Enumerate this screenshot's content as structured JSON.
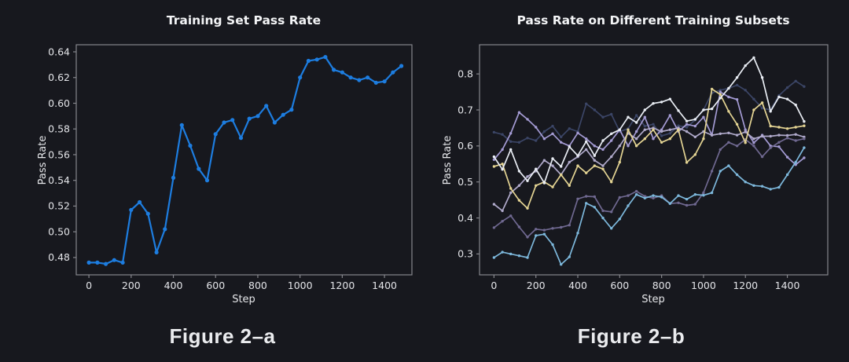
{
  "page": {
    "background": "#17181e",
    "spine_color": "#85868c",
    "text_color": "#e3e4e8"
  },
  "figures": [
    {
      "title": "Training Set Pass Rate",
      "xlabel": "Step",
      "ylabel": "Pass Rate",
      "caption": "Figure 2–a"
    },
    {
      "title": "Pass Rate on Different Training Subsets",
      "xlabel": "Step",
      "ylabel": "Pass Rate",
      "caption": "Figure 2–b"
    }
  ],
  "chart_data": [
    {
      "type": "line",
      "title": "Training Set Pass Rate",
      "xlabel": "Step",
      "ylabel": "Pass Rate",
      "grid": false,
      "legend": null,
      "x": [
        0,
        40,
        80,
        120,
        160,
        200,
        240,
        280,
        320,
        360,
        400,
        440,
        480,
        520,
        560,
        600,
        640,
        680,
        720,
        760,
        800,
        840,
        880,
        920,
        960,
        1000,
        1040,
        1080,
        1120,
        1160,
        1200,
        1240,
        1280,
        1320,
        1360,
        1400,
        1440,
        1480
      ],
      "xlim": [
        -60,
        1530
      ],
      "ylim": [
        0.4665,
        0.6455
      ],
      "xticks": [
        0,
        200,
        400,
        600,
        800,
        1000,
        1200,
        1400
      ],
      "xticklabels": [
        "0",
        "200",
        "400",
        "600",
        "800",
        "1000",
        "1200",
        "1400"
      ],
      "yticks": [
        0.48,
        0.5,
        0.52,
        0.54,
        0.56,
        0.58,
        0.6,
        0.62,
        0.64
      ],
      "yticklabels": [
        "0.48",
        "0.50",
        "0.52",
        "0.54",
        "0.56",
        "0.58",
        "0.60",
        "0.62",
        "0.64"
      ],
      "series": [
        {
          "name": "training-set-pass-rate",
          "color": "#1d7de0",
          "values": [
            0.476,
            0.476,
            0.475,
            0.478,
            0.476,
            0.517,
            0.523,
            0.514,
            0.484,
            0.502,
            0.542,
            0.583,
            0.567,
            0.549,
            0.54,
            0.576,
            0.585,
            0.587,
            0.573,
            0.588,
            0.59,
            0.598,
            0.585,
            0.591,
            0.595,
            0.62,
            0.633,
            0.634,
            0.636,
            0.626,
            0.624,
            0.62,
            0.618,
            0.62,
            0.616,
            0.617,
            0.624,
            0.629
          ]
        }
      ]
    },
    {
      "type": "line",
      "title": "Pass Rate on Different Training Subsets",
      "xlabel": "Step",
      "ylabel": "Pass Rate",
      "grid": false,
      "legend": null,
      "x": [
        0,
        40,
        80,
        120,
        160,
        200,
        240,
        280,
        320,
        360,
        400,
        440,
        480,
        520,
        560,
        600,
        640,
        680,
        720,
        760,
        800,
        840,
        880,
        920,
        960,
        1000,
        1040,
        1080,
        1120,
        1160,
        1200,
        1240,
        1280,
        1320,
        1360,
        1400,
        1440,
        1480
      ],
      "xlim": [
        -69,
        1593
      ],
      "ylim": [
        0.242,
        0.881
      ],
      "xticks": [
        0,
        200,
        400,
        600,
        800,
        1000,
        1200,
        1400
      ],
      "xticklabels": [
        "0",
        "200",
        "400",
        "600",
        "800",
        "1000",
        "1200",
        "1400"
      ],
      "yticks": [
        0.3,
        0.4,
        0.5,
        0.6,
        0.7,
        0.8
      ],
      "yticklabels": [
        "0.3",
        "0.4",
        "0.5",
        "0.6",
        "0.7",
        "0.8"
      ],
      "series": [
        {
          "name": "subset-navy",
          "color": "#3b4566",
          "values": [
            0.638,
            0.632,
            0.612,
            0.61,
            0.622,
            0.615,
            0.64,
            0.655,
            0.625,
            0.648,
            0.64,
            0.717,
            0.7,
            0.68,
            0.688,
            0.64,
            0.648,
            0.685,
            0.655,
            0.66,
            0.628,
            0.635,
            0.656,
            0.652,
            0.672,
            0.7,
            0.747,
            0.755,
            0.76,
            0.769,
            0.755,
            0.73,
            0.705,
            0.7,
            0.74,
            0.762,
            0.78,
            0.765
          ]
        },
        {
          "name": "subset-periwinkle",
          "color": "#a49bd4",
          "values": [
            0.562,
            0.59,
            0.635,
            0.693,
            0.674,
            0.652,
            0.62,
            0.634,
            0.61,
            0.6,
            0.636,
            0.62,
            0.6,
            0.59,
            0.615,
            0.645,
            0.6,
            0.64,
            0.68,
            0.62,
            0.645,
            0.685,
            0.64,
            0.66,
            0.655,
            0.68,
            0.63,
            0.75,
            0.736,
            0.729,
            0.645,
            0.609,
            0.63,
            0.6,
            0.598,
            0.569,
            0.548,
            0.567
          ]
        },
        {
          "name": "subset-pale-lavender",
          "color": "#b0aacb",
          "values": [
            0.438,
            0.42,
            0.47,
            0.49,
            0.515,
            0.53,
            0.56,
            0.545,
            0.52,
            0.555,
            0.57,
            0.59,
            0.56,
            0.545,
            0.57,
            0.6,
            0.635,
            0.62,
            0.645,
            0.65,
            0.64,
            0.645,
            0.65,
            0.64,
            0.625,
            0.64,
            0.63,
            0.634,
            0.636,
            0.63,
            0.639,
            0.62,
            0.627,
            0.627,
            0.63,
            0.629,
            0.632,
            0.625
          ]
        },
        {
          "name": "subset-muted-purple",
          "color": "#6f6890",
          "values": [
            0.373,
            0.391,
            0.406,
            0.375,
            0.347,
            0.369,
            0.366,
            0.371,
            0.374,
            0.38,
            0.453,
            0.46,
            0.459,
            0.42,
            0.417,
            0.457,
            0.462,
            0.474,
            0.46,
            0.455,
            0.462,
            0.44,
            0.442,
            0.435,
            0.438,
            0.47,
            0.53,
            0.59,
            0.61,
            0.6,
            0.618,
            0.6,
            0.57,
            0.595,
            0.61,
            0.622,
            0.615,
            0.62
          ]
        },
        {
          "name": "subset-yellow",
          "color": "#e4d493",
          "values": [
            0.543,
            0.55,
            0.482,
            0.449,
            0.427,
            0.49,
            0.5,
            0.486,
            0.52,
            0.49,
            0.545,
            0.525,
            0.545,
            0.536,
            0.5,
            0.555,
            0.645,
            0.6,
            0.62,
            0.645,
            0.61,
            0.62,
            0.645,
            0.554,
            0.576,
            0.62,
            0.758,
            0.743,
            0.696,
            0.66,
            0.609,
            0.7,
            0.72,
            0.655,
            0.652,
            0.648,
            0.652,
            0.656
          ]
        },
        {
          "name": "subset-sky",
          "color": "#7db8dc",
          "values": [
            0.29,
            0.305,
            0.3,
            0.295,
            0.29,
            0.351,
            0.355,
            0.326,
            0.271,
            0.292,
            0.358,
            0.441,
            0.43,
            0.4,
            0.371,
            0.397,
            0.434,
            0.465,
            0.455,
            0.462,
            0.458,
            0.44,
            0.462,
            0.452,
            0.465,
            0.463,
            0.47,
            0.53,
            0.545,
            0.52,
            0.5,
            0.49,
            0.488,
            0.48,
            0.485,
            0.52,
            0.555,
            0.595
          ]
        },
        {
          "name": "subset-white",
          "color": "#e9edf4",
          "values": [
            0.57,
            0.535,
            0.59,
            0.53,
            0.503,
            0.536,
            0.497,
            0.565,
            0.543,
            0.598,
            0.573,
            0.612,
            0.573,
            0.615,
            0.634,
            0.645,
            0.68,
            0.665,
            0.7,
            0.718,
            0.722,
            0.73,
            0.698,
            0.669,
            0.674,
            0.7,
            0.703,
            0.733,
            0.76,
            0.79,
            0.823,
            0.845,
            0.79,
            0.696,
            0.736,
            0.73,
            0.714,
            0.668
          ]
        }
      ]
    }
  ]
}
